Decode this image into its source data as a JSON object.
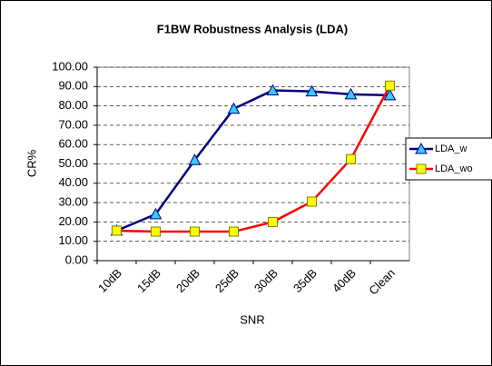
{
  "chart_data": {
    "type": "line",
    "title": "F1BW Robustness Analysis (LDA)",
    "x_label": "SNR",
    "y_label": "CR%",
    "categories": [
      "10dB",
      "15dB",
      "20dB",
      "25dB",
      "30dB",
      "35dB",
      "40dB",
      "Clean"
    ],
    "series": [
      {
        "name": "LDA_w",
        "color": "#000080",
        "marker_color": "#33ccff",
        "marker": "triangle",
        "values": [
          15.5,
          24,
          52,
          78.5,
          88,
          87.5,
          86,
          85.5
        ]
      },
      {
        "name": "LDA_wo",
        "color": "#ff0000",
        "marker_color": "#ffff00",
        "marker": "square",
        "values": [
          15.5,
          15,
          15,
          15,
          20,
          30.5,
          52.5,
          90.5
        ]
      }
    ],
    "ylim": [
      0,
      100
    ],
    "yticks": [
      {
        "value": 0,
        "label": "0.00"
      },
      {
        "value": 10,
        "label": "10.00"
      },
      {
        "value": 20,
        "label": "20.00"
      },
      {
        "value": 30,
        "label": "30.00"
      },
      {
        "value": 40,
        "label": "40.00"
      },
      {
        "value": 50,
        "label": "50.00"
      },
      {
        "value": 60,
        "label": "60.00"
      },
      {
        "value": 70,
        "label": "70.00"
      },
      {
        "value": 80,
        "label": "80.00"
      },
      {
        "value": 90,
        "label": "90.00"
      },
      {
        "value": 100,
        "label": "100.00"
      }
    ],
    "grid": true,
    "legend": "right"
  }
}
